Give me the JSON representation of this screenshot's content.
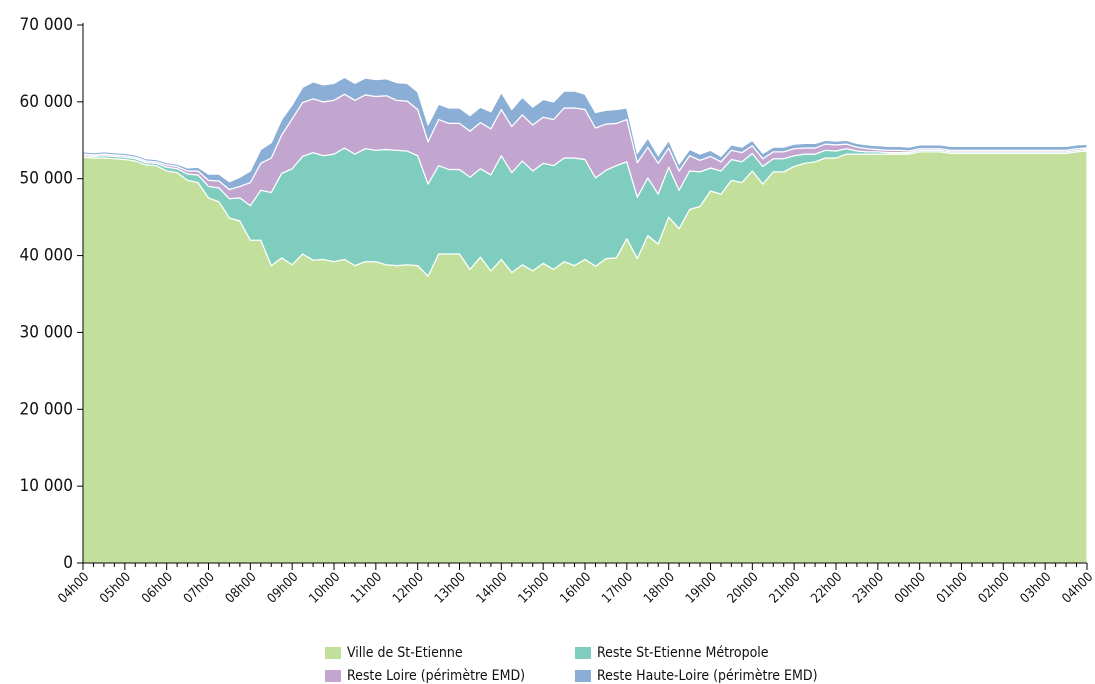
{
  "chart_data": {
    "type": "stacked_area",
    "categories": [
      "04h00",
      null,
      null,
      null,
      "05h00",
      null,
      null,
      null,
      "06h00",
      null,
      null,
      null,
      "07h00",
      null,
      null,
      null,
      "08h00",
      null,
      null,
      null,
      "09h00",
      null,
      null,
      null,
      "10h00",
      null,
      null,
      null,
      "11h00",
      null,
      null,
      null,
      "12h00",
      null,
      null,
      null,
      "13h00",
      null,
      null,
      null,
      "14h00",
      null,
      null,
      null,
      "15h00",
      null,
      null,
      null,
      "16h00",
      null,
      null,
      null,
      "17h00",
      null,
      null,
      null,
      "18h00",
      null,
      null,
      null,
      "19h00",
      null,
      null,
      null,
      "20h00",
      null,
      null,
      null,
      "21h00",
      null,
      null,
      null,
      "22h00",
      null,
      null,
      null,
      "23h00",
      null,
      null,
      null,
      "00h00",
      null,
      null,
      null,
      "01h00",
      null,
      null,
      null,
      "02h00",
      null,
      null,
      null,
      "03h00",
      null,
      null,
      null,
      "04h00"
    ],
    "series": [
      {
        "name": "Ville de St-Etienne",
        "color": "#c2df9c",
        "values": [
          52800,
          52700,
          52700,
          52600,
          52500,
          52300,
          51800,
          51700,
          51000,
          50800,
          49800,
          49500,
          47500,
          47000,
          44900,
          44500,
          42000,
          42000,
          38700,
          39700,
          38800,
          40200,
          39400,
          39500,
          39200,
          39500,
          38700,
          39200,
          39200,
          38800,
          38700,
          38800,
          38700,
          37300,
          40200,
          40200,
          40200,
          38200,
          39800,
          38000,
          39500,
          37800,
          38800,
          38000,
          39000,
          38200,
          39200,
          38700,
          39500,
          38600,
          39600,
          39700,
          42200,
          39600,
          42600,
          41500,
          45000,
          43500,
          46000,
          46400,
          48400,
          48000,
          49800,
          49500,
          51000,
          49300,
          50900,
          50900,
          51600,
          52000,
          52200,
          52700,
          52700,
          53200,
          53200,
          53200,
          53200,
          53200,
          53200,
          53200,
          53500,
          53500,
          53500,
          53300,
          53300,
          53300,
          53300,
          53300,
          53300,
          53300,
          53300,
          53300,
          53300,
          53300,
          53300,
          53500,
          53600
        ]
      },
      {
        "name": "Reste St-Etienne Métropole",
        "color": "#7ecdbf",
        "values": [
          200,
          200,
          300,
          300,
          300,
          300,
          300,
          300,
          500,
          500,
          800,
          1000,
          1500,
          1800,
          2500,
          3000,
          4500,
          6500,
          9500,
          11000,
          12500,
          12700,
          14000,
          13500,
          14000,
          14500,
          14500,
          14700,
          14500,
          15000,
          15000,
          14800,
          14300,
          12000,
          11500,
          11000,
          11000,
          12000,
          11500,
          12500,
          13500,
          13000,
          13500,
          13000,
          13000,
          13500,
          13500,
          14000,
          13000,
          11500,
          11500,
          12000,
          10000,
          8000,
          7500,
          6500,
          6500,
          5000,
          5000,
          4500,
          3000,
          3000,
          2700,
          2700,
          2300,
          2300,
          1700,
          1700,
          1400,
          1200,
          1000,
          1000,
          900,
          700,
          400,
          300,
          300,
          200,
          200,
          200,
          200,
          200,
          200,
          200,
          200,
          200,
          200,
          200,
          200,
          200,
          200,
          200,
          200,
          200,
          200,
          200,
          200
        ]
      },
      {
        "name": "Reste Loire (périmètre EMD)",
        "color": "#c3a6cf",
        "values": [
          200,
          200,
          200,
          200,
          200,
          200,
          200,
          200,
          300,
          300,
          400,
          500,
          800,
          900,
          1200,
          1500,
          3000,
          3500,
          4500,
          5000,
          6500,
          7000,
          7000,
          7000,
          7000,
          7000,
          7000,
          7000,
          7000,
          7000,
          6500,
          6500,
          6000,
          5500,
          6000,
          6000,
          6000,
          6000,
          6000,
          6000,
          6000,
          6000,
          6000,
          6000,
          6000,
          6000,
          6500,
          6500,
          6500,
          6500,
          6000,
          5500,
          5500,
          4500,
          4000,
          4000,
          2500,
          2500,
          2000,
          1500,
          1500,
          1200,
          1200,
          1200,
          1000,
          1000,
          900,
          900,
          900,
          800,
          800,
          800,
          800,
          600,
          500,
          400,
          300,
          300,
          300,
          200,
          200,
          200,
          200,
          200,
          200,
          200,
          200,
          200,
          200,
          200,
          200,
          200,
          200,
          200,
          200,
          200,
          200
        ]
      },
      {
        "name": "Reste Haute-Loire (périmètre EMD)",
        "color": "#8aaed6",
        "values": [
          300,
          300,
          300,
          300,
          300,
          300,
          300,
          300,
          300,
          300,
          400,
          500,
          800,
          900,
          1000,
          1200,
          1500,
          1800,
          2000,
          2000,
          1800,
          2000,
          2200,
          2200,
          2200,
          2200,
          2200,
          2200,
          2200,
          2200,
          2300,
          2300,
          2300,
          2200,
          2000,
          2000,
          2000,
          2000,
          2000,
          2200,
          2200,
          2200,
          2300,
          2300,
          2300,
          2300,
          2200,
          2200,
          2000,
          2000,
          1800,
          1800,
          1500,
          1200,
          1200,
          1000,
          1000,
          900,
          800,
          800,
          800,
          700,
          700,
          700,
          700,
          700,
          600,
          600,
          600,
          600,
          600,
          500,
          500,
          500,
          500,
          500,
          500,
          500,
          500,
          500,
          500,
          500,
          500,
          500,
          500,
          500,
          500,
          500,
          500,
          500,
          500,
          500,
          500,
          500,
          500,
          500,
          500
        ]
      }
    ],
    "ylim": [
      0,
      70000
    ],
    "yticks": [
      0,
      {
        "value": 10000,
        "label": "10 000"
      },
      {
        "value": 20000,
        "label": "20 000"
      },
      {
        "value": 30000,
        "label": "30 000"
      },
      {
        "value": 40000,
        "label": "40 000"
      },
      {
        "value": 50000,
        "label": "50 000"
      },
      {
        "value": 60000,
        "label": "60 000"
      },
      {
        "value": 70000,
        "label": "70 000"
      }
    ]
  }
}
